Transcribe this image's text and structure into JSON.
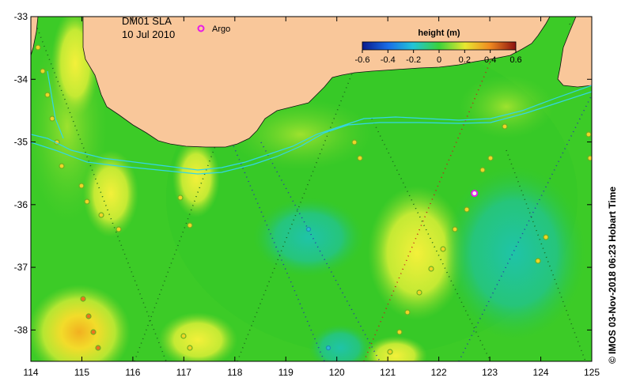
{
  "map": {
    "product": "DM01 SLA",
    "date": "10 Jul 2010",
    "argo_label": "Argo",
    "credit": "© IMOS 03-Nov-2018 06:23 Hobart Time",
    "x_ticks": [
      "114",
      "115",
      "116",
      "117",
      "118",
      "119",
      "120",
      "121",
      "122",
      "123",
      "124",
      "125"
    ],
    "y_ticks": [
      "-33",
      "-34",
      "-35",
      "-36",
      "-37",
      "-38"
    ],
    "lon_range": [
      114,
      125
    ],
    "lat_range": [
      -38.5,
      -33
    ],
    "colors": {
      "land": "#f9c79a",
      "ocean_base": "#31c823",
      "contour": "#33d6e6",
      "argo": "#e819e8"
    }
  },
  "colorbar": {
    "title": "height (m)",
    "ticks": [
      "-0.6",
      "-0.4",
      "-0.2",
      "0",
      "0.2",
      "0.4",
      "0.6"
    ],
    "range": [
      -0.6,
      0.6
    ]
  },
  "argo_float": {
    "lon": 122.7,
    "lat": -35.82
  }
}
